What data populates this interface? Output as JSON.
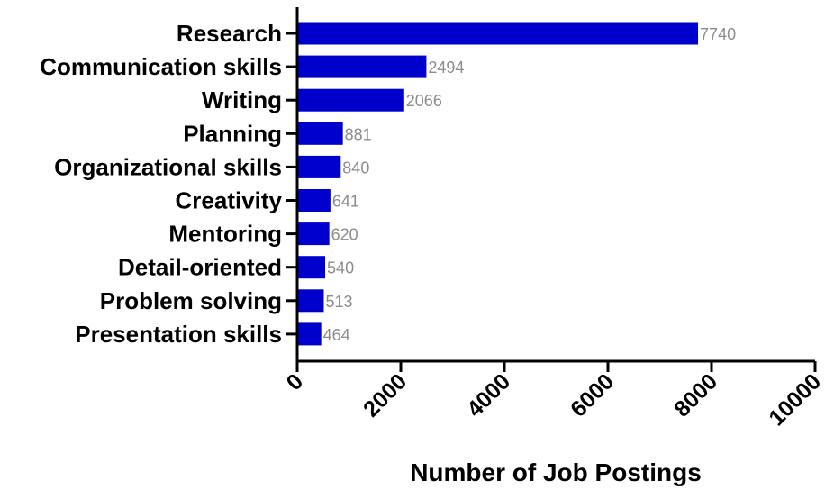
{
  "chart_data": {
    "type": "bar",
    "orientation": "horizontal",
    "categories": [
      "Research",
      "Communication skills",
      "Writing",
      "Planning",
      "Organizational skills",
      "Creativity",
      "Mentoring",
      "Detail-oriented",
      "Problem solving",
      "Presentation skills"
    ],
    "values": [
      7740,
      2494,
      2066,
      881,
      840,
      641,
      620,
      540,
      513,
      464
    ],
    "value_labels": [
      "7740",
      "2494",
      "2066",
      "881",
      "840",
      "641",
      "620",
      "540",
      "513",
      "464"
    ],
    "xlabel": "Number of Job Postings",
    "ylabel": "",
    "xlim": [
      0,
      10000
    ],
    "xticks": [
      0,
      2000,
      4000,
      6000,
      8000,
      10000
    ],
    "xtick_labels": [
      "0",
      "2000",
      "4000",
      "6000",
      "8000",
      "10000"
    ],
    "grid": false,
    "bar_color": "#0000cc",
    "value_label_color": "#8c8c8c"
  }
}
